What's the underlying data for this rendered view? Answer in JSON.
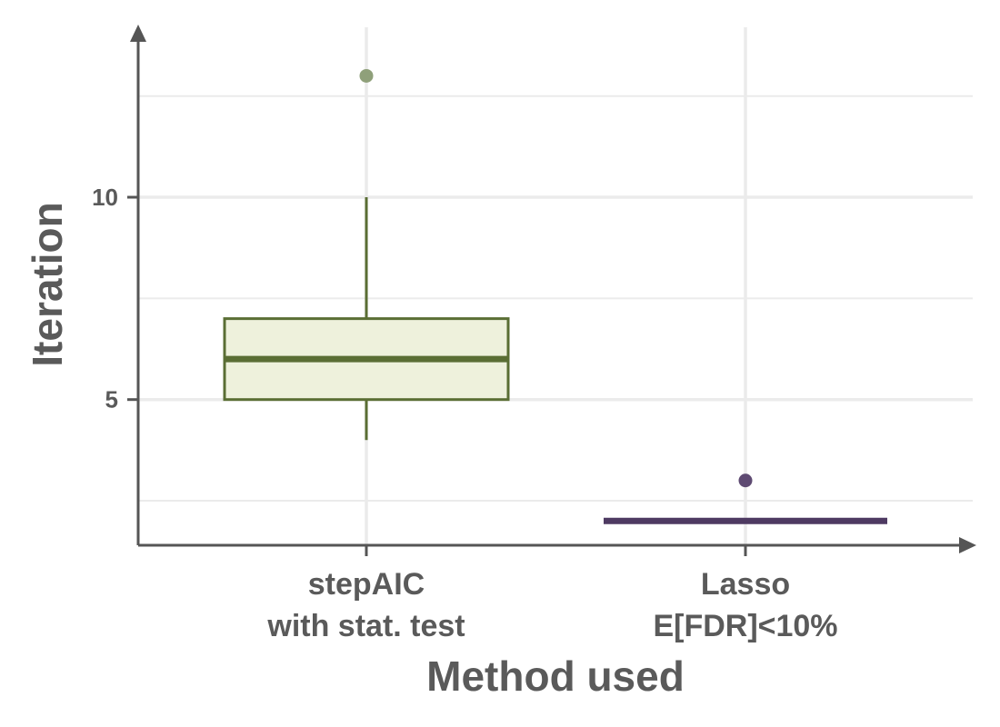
{
  "chart_data": {
    "type": "boxplot",
    "xlabel": "Method used",
    "ylabel": "Iteration",
    "ylim": [
      1.4,
      14.2
    ],
    "yticks": [
      5,
      10
    ],
    "ytick_labels": [
      "5",
      "10"
    ],
    "grid": true,
    "legend": "none",
    "categories": [
      {
        "line1": "stepAIC",
        "line2": "with stat. test"
      },
      {
        "line1": "Lasso",
        "line2": "E[FDR]<10%"
      }
    ],
    "boxes": [
      {
        "min": 4,
        "q1": 5,
        "median": 6,
        "q3": 7,
        "max": 10,
        "outliers": [
          13
        ],
        "color": "#5a6e34",
        "fill": "#eef1dc",
        "outlier_color": "#8fa07a"
      },
      {
        "min": 2,
        "q1": 2,
        "median": 2,
        "q3": 2,
        "max": 2,
        "outliers": [
          3
        ],
        "color": "#4e3a62",
        "fill": "#e6e0ec",
        "outlier_color": "#5e4a72"
      }
    ],
    "colors": {
      "axis": "#555555",
      "grid": "#ebebeb",
      "text": "#5a5a5a"
    }
  }
}
